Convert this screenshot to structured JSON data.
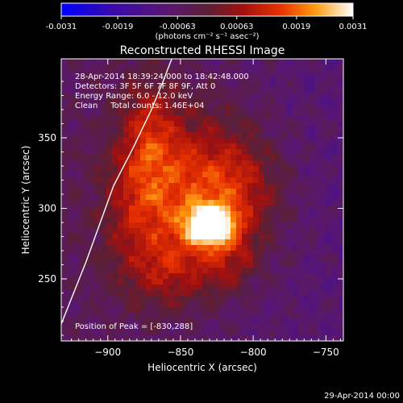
{
  "chart_data": {
    "type": "heatmap",
    "title": "Reconstructed RHESSI Image",
    "xlabel": "Heliocentric X (arcsec)",
    "ylabel": "Heliocentric Y (arcsec)",
    "xlim": [
      -932,
      -738
    ],
    "ylim": [
      206,
      406
    ],
    "x_ticks": [
      -900,
      -850,
      -800,
      -750
    ],
    "y_ticks": [
      250,
      300,
      350
    ],
    "colorbar": {
      "min": -0.0031,
      "max": 0.0031,
      "ticks": [
        -0.0031,
        -0.0019,
        -0.00063,
        0.00063,
        0.0019,
        0.0031
      ],
      "tick_labels": [
        "-0.0031",
        "-0.0019",
        "-0.00063",
        "0.00063",
        "0.0019",
        "0.0031"
      ],
      "unit_label": "(photons cm⁻² s⁻¹ asec⁻²)",
      "colormap": "blue-purple-red-yellow-white"
    },
    "annotations": [
      "28-Apr-2014 18:39:24.000 to 18:42:48.000",
      "Detectors: 3F 5F 6F 7F 8F 9F, Att 0",
      "Energy Range: 6.0 - 12.0 keV",
      "Clean     Total counts: 1.46E+04"
    ],
    "peak_label": "Position of Peak = [-830,288]",
    "peak": {
      "x": -830,
      "y": 288,
      "value": 0.0031
    },
    "sources": [
      {
        "x": -830,
        "y": 288,
        "sx": 12,
        "sy": 10,
        "amp": 1.0
      },
      {
        "x": -842,
        "y": 315,
        "sx": 30,
        "sy": 38,
        "amp": 0.55
      },
      {
        "x": -872,
        "y": 355,
        "sx": 14,
        "sy": 28,
        "amp": 0.35
      },
      {
        "x": -808,
        "y": 312,
        "sx": 20,
        "sy": 26,
        "amp": 0.3
      },
      {
        "x": -858,
        "y": 255,
        "sx": 22,
        "sy": 18,
        "amp": 0.32
      },
      {
        "x": -880,
        "y": 300,
        "sx": 18,
        "sy": 30,
        "amp": 0.3
      },
      {
        "x": -815,
        "y": 262,
        "sx": 14,
        "sy": 14,
        "amp": 0.25
      }
    ],
    "limb": [
      [
        -932,
        218
      ],
      [
        -915,
        262
      ],
      [
        -896,
        316
      ],
      [
        -883,
        342
      ],
      [
        -870,
        370
      ],
      [
        -862,
        390
      ],
      [
        -856,
        406
      ]
    ],
    "limb_color": "#ffffff"
  },
  "footer": {
    "timestamp": "29-Apr-2014 00:00"
  }
}
